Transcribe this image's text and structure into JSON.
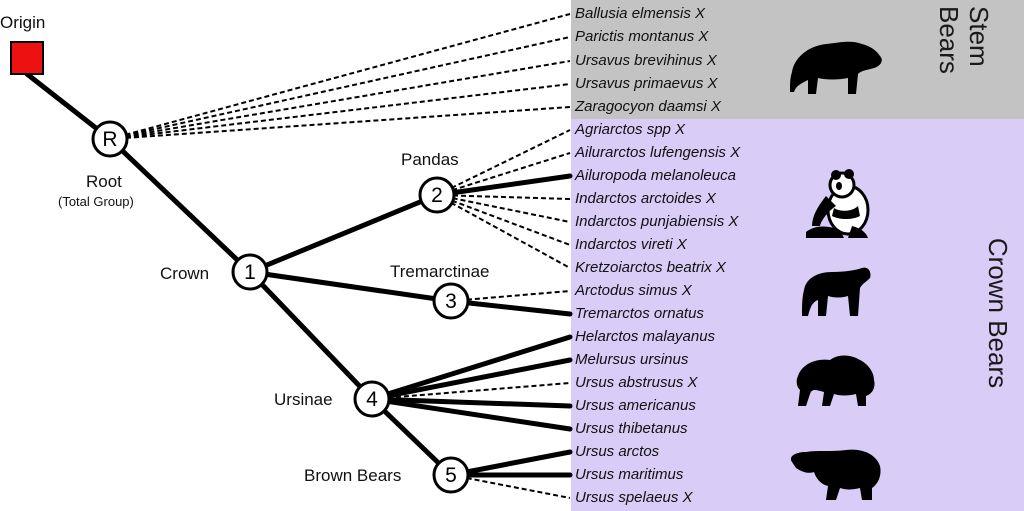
{
  "colors": {
    "stem_band": "#c3c3c3",
    "crown_band": "#d9ccf7",
    "origin_fill": "#ee1111",
    "line": "#000000",
    "node_fill": "#ffffff"
  },
  "labels": {
    "origin": "Origin",
    "root": "Root",
    "root_sub": "(Total Group)",
    "crown": "Crown",
    "pandas": "Pandas",
    "tremarctinae": "Tremarctinae",
    "ursinae": "Ursinae",
    "brown_bears": "Brown Bears",
    "stem_bears": "Stem Bears",
    "crown_bears": "Crown Bears"
  },
  "nodes": {
    "root": "R",
    "n1": "1",
    "n2": "2",
    "n3": "3",
    "n4": "4",
    "n5": "5"
  },
  "taxa": [
    {
      "name": "Ballusia elmensis X",
      "group": "stem",
      "extinct": true
    },
    {
      "name": "Parictis montanus X",
      "group": "stem",
      "extinct": true
    },
    {
      "name": "Ursavus brevihinus X",
      "group": "stem",
      "extinct": true
    },
    {
      "name": "Ursavus primaevus X",
      "group": "stem",
      "extinct": true
    },
    {
      "name": "Zaragocyon daamsi X",
      "group": "stem",
      "extinct": true
    },
    {
      "name": "Agriarctos spp X",
      "group": "pandas",
      "extinct": true
    },
    {
      "name": "Ailurarctos lufengensis X",
      "group": "pandas",
      "extinct": true
    },
    {
      "name": "Ailuropoda melanoleuca",
      "group": "pandas",
      "extinct": false
    },
    {
      "name": "Indarctos arctoides X",
      "group": "pandas",
      "extinct": true
    },
    {
      "name": "Indarctos punjabiensis X",
      "group": "pandas",
      "extinct": true
    },
    {
      "name": "Indarctos vireti X",
      "group": "pandas",
      "extinct": true
    },
    {
      "name": "Kretzoiarctos beatrix X",
      "group": "pandas",
      "extinct": true
    },
    {
      "name": "Arctodus simus X",
      "group": "tremarctinae",
      "extinct": true
    },
    {
      "name": "Tremarctos ornatus",
      "group": "tremarctinae",
      "extinct": false
    },
    {
      "name": "Helarctos malayanus",
      "group": "ursinae",
      "extinct": false
    },
    {
      "name": "Melursus ursinus",
      "group": "ursinae",
      "extinct": false
    },
    {
      "name": "Ursus abstrusus X",
      "group": "ursinae",
      "extinct": true
    },
    {
      "name": "Ursus americanus",
      "group": "ursinae",
      "extinct": false
    },
    {
      "name": "Ursus thibetanus",
      "group": "ursinae",
      "extinct": false
    },
    {
      "name": "Ursus arctos",
      "group": "brown",
      "extinct": false
    },
    {
      "name": "Ursus maritimus",
      "group": "brown",
      "extinct": false
    },
    {
      "name": "Ursus spelaeus X",
      "group": "brown",
      "extinct": true
    }
  ],
  "silhouettes": [
    "short-faced-bear-icon",
    "giant-panda-icon",
    "spectacled-bear-icon",
    "sloth-bear-icon",
    "polar-bear-icon"
  ]
}
